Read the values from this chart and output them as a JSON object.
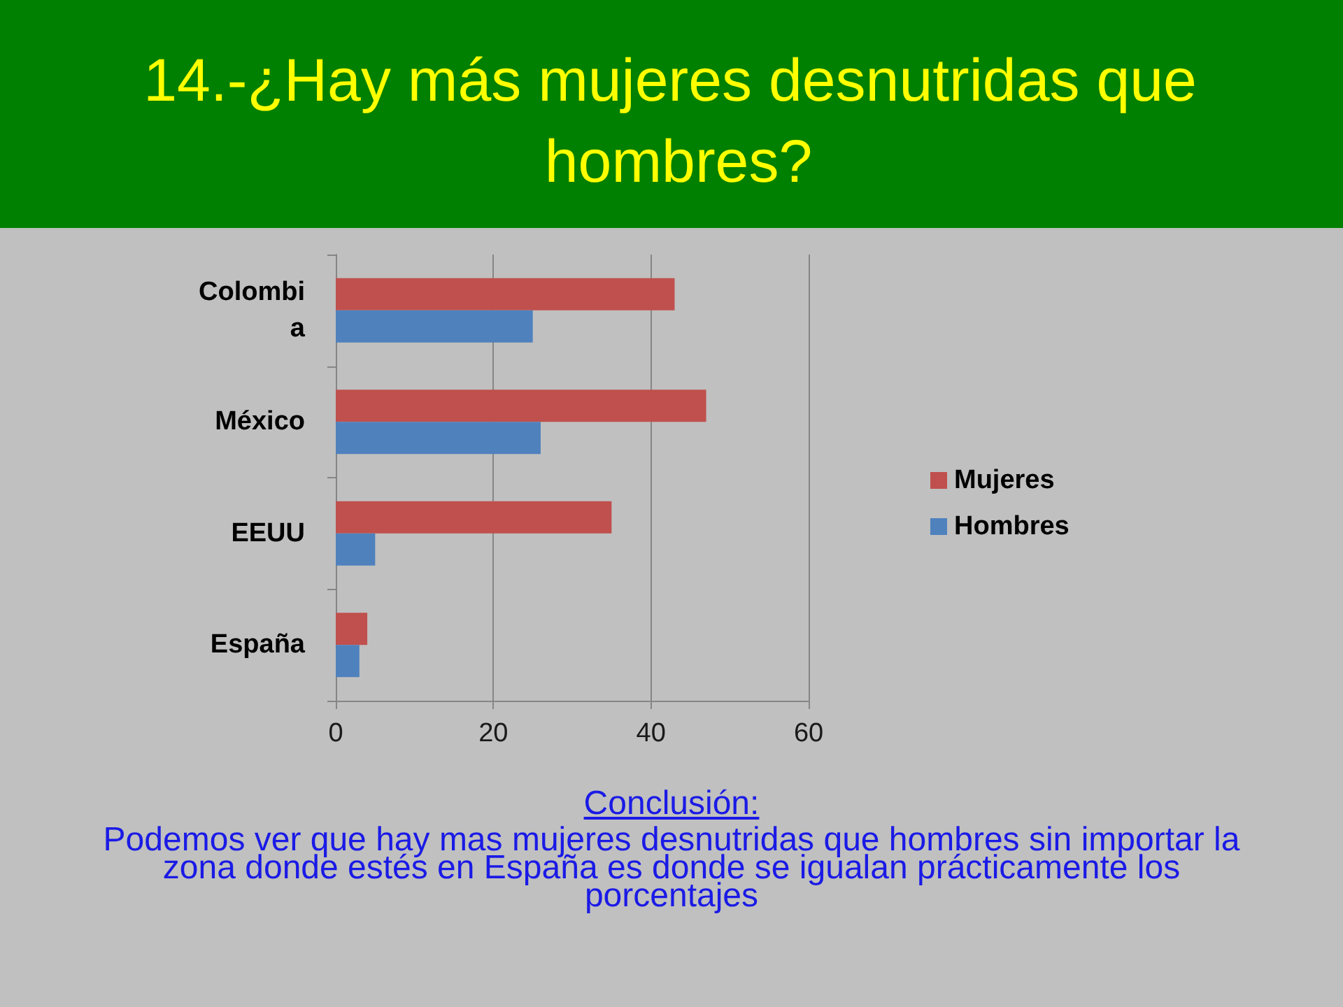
{
  "chart_data": {
    "type": "bar",
    "orientation": "horizontal",
    "title": "14.-¿Hay más mujeres desnutridas que hombres?",
    "categories": [
      "Colombia",
      "México",
      "EEUU",
      "España"
    ],
    "series": [
      {
        "name": "Mujeres",
        "color": "#c0504d",
        "values": [
          43,
          47,
          35,
          4
        ]
      },
      {
        "name": "Hombres",
        "color": "#4f81bd",
        "values": [
          25,
          26,
          5,
          3
        ]
      }
    ],
    "xlim": [
      0,
      60
    ],
    "xticks": [
      0,
      20,
      40,
      60
    ],
    "grid": "x",
    "legend": "right",
    "annotations": [
      "Conclusión:",
      "Podemos ver que hay mas mujeres desnutridas que hombres sin importar la zona donde estés en España es donde se igualan prácticamente los porcentajes"
    ]
  }
}
